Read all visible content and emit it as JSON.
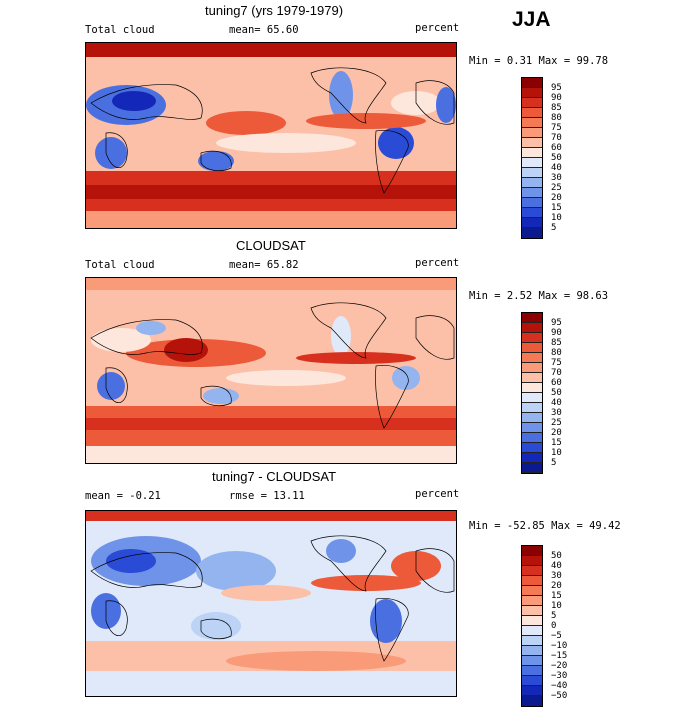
{
  "season": "JJA",
  "panels": [
    {
      "title": "tuning7 (yrs 1979-1979)",
      "left_label": "Total cloud",
      "center_label": "mean=  65.60",
      "units": "percent",
      "stats": "Min =   0.31 Max =  99.78",
      "ticks": [
        "95",
        "90",
        "85",
        "80",
        "75",
        "70",
        "60",
        "50",
        "40",
        "30",
        "25",
        "20",
        "15",
        "10",
        "5"
      ],
      "colors": [
        "#8b0000",
        "#b5120a",
        "#d7301f",
        "#ec5a3a",
        "#f47a55",
        "#f99a78",
        "#fcc0a8",
        "#fde6dc",
        "#dfe9fa",
        "#bcd3f6",
        "#94b4ef",
        "#6f93e8",
        "#4a6fe0",
        "#2a4bd6",
        "#1327b8",
        "#0b1a8f"
      ]
    },
    {
      "title": "CLOUDSAT",
      "left_label": "Total cloud",
      "center_label": "mean=  65.82",
      "units": "percent",
      "stats": "Min =   2.52 Max =  98.63",
      "ticks": [
        "95",
        "90",
        "85",
        "80",
        "75",
        "70",
        "60",
        "50",
        "40",
        "30",
        "25",
        "20",
        "15",
        "10",
        "5"
      ],
      "colors": [
        "#8b0000",
        "#b5120a",
        "#d7301f",
        "#ec5a3a",
        "#f47a55",
        "#f99a78",
        "#fcc0a8",
        "#fde6dc",
        "#dfe9fa",
        "#bcd3f6",
        "#94b4ef",
        "#6f93e8",
        "#4a6fe0",
        "#2a4bd6",
        "#1327b8",
        "#0b1a8f"
      ]
    },
    {
      "title": "tuning7 - CLOUDSAT",
      "left_label": "mean =  -0.21",
      "center_label": "rmse =  13.11",
      "units": "percent",
      "stats": "Min = -52.85 Max =  49.42",
      "ticks": [
        "50",
        "40",
        "30",
        "20",
        "15",
        "10",
        "5",
        "0",
        "−5",
        "−10",
        "−15",
        "−20",
        "−30",
        "−40",
        "−50"
      ],
      "colors": [
        "#8b0000",
        "#b5120a",
        "#d7301f",
        "#ec5a3a",
        "#f47a55",
        "#f99a78",
        "#fcc0a8",
        "#fde6dc",
        "#dfe9fa",
        "#bcd3f6",
        "#94b4ef",
        "#6f93e8",
        "#4a6fe0",
        "#2a4bd6",
        "#1327b8",
        "#0b1a8f"
      ]
    }
  ]
}
